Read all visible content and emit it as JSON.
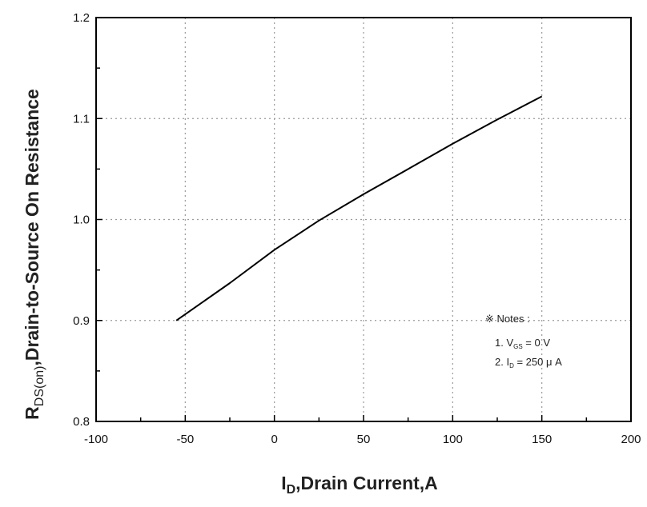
{
  "chart_data": {
    "type": "line",
    "xlabel_main": "I",
    "xlabel_sub": "D",
    "xlabel_rest": ",Drain Current,A",
    "ylabel_main": "R",
    "ylabel_sub": "DS(on)",
    "ylabel_rest": ",Drain-to-Source On Resistance",
    "xlim": [
      -100,
      200
    ],
    "ylim": [
      0.8,
      1.2
    ],
    "x_ticks": [
      -100,
      -50,
      0,
      50,
      100,
      150,
      200
    ],
    "x_tick_labels": [
      "-100",
      "-50",
      "0",
      "50",
      "100",
      "150",
      "200"
    ],
    "y_ticks": [
      0.8,
      0.9,
      1.0,
      1.1,
      1.2
    ],
    "y_tick_labels": [
      "0.8",
      "0.9",
      "1.0",
      "1.1",
      "1.2"
    ],
    "grid": true,
    "series": [
      {
        "x": [
          -55,
          -25,
          0,
          25,
          50,
          75,
          100,
          125,
          150
        ],
        "y": [
          0.9,
          0.937,
          0.97,
          0.999,
          1.025,
          1.05,
          1.075,
          1.099,
          1.122
        ]
      }
    ],
    "notes": {
      "title": "※ Notes :",
      "line1_prefix": "1. V",
      "line1_sub": "GS",
      "line1_suffix": " = 0 V",
      "line2_prefix": "2. I",
      "line2_sub": "D",
      "line2_suffix": " = 250 μ A"
    }
  }
}
